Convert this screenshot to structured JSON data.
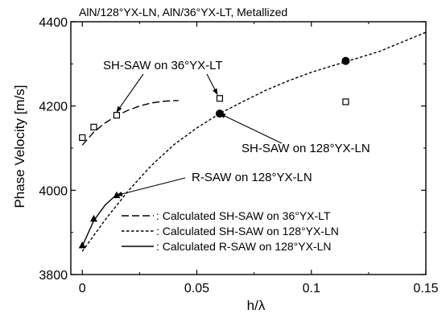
{
  "chart_data": {
    "type": "scatter",
    "title": "AlN/128°YX-LN,  AlN/36°YX-LT,  Metallized",
    "xlabel": "h/λ",
    "ylabel": "Phase Velocity  [m/s]",
    "xlim": [
      -0.005,
      0.15
    ],
    "ylim": [
      3800,
      4400
    ],
    "x_ticks": [
      0,
      0.05,
      0.1,
      0.15
    ],
    "x_tick_labels": [
      "0",
      "0.05",
      "0.1",
      "0.15"
    ],
    "y_ticks": [
      3800,
      4000,
      4200,
      4400
    ],
    "y_tick_labels": [
      "3800",
      "4000",
      "4200",
      "4400"
    ],
    "grid": false,
    "legend_position": "bottom-right",
    "series": [
      {
        "name": "SH-SAW on 36°YX-LT",
        "kind": "measured",
        "marker": "open-square",
        "points": [
          [
            0.0,
            4125
          ],
          [
            0.005,
            4150
          ],
          [
            0.015,
            4178
          ],
          [
            0.06,
            4218
          ],
          [
            0.115,
            4210
          ]
        ]
      },
      {
        "name": "SH-SAW on 128°YX-LN",
        "kind": "measured",
        "marker": "filled-circle",
        "points": [
          [
            0.06,
            4182
          ],
          [
            0.115,
            4307
          ]
        ]
      },
      {
        "name": "R-SAW on 128°YX-LN",
        "kind": "measured",
        "marker": "filled-triangle",
        "points": [
          [
            0.0,
            3869
          ],
          [
            0.005,
            3932
          ],
          [
            0.015,
            3988
          ]
        ]
      },
      {
        "name": "Calculated SH-SAW on 36°YX-LT",
        "kind": "calculated",
        "dash": "long-dash",
        "points": [
          [
            0.0,
            4107
          ],
          [
            0.005,
            4138
          ],
          [
            0.01,
            4160
          ],
          [
            0.015,
            4177
          ],
          [
            0.02,
            4190
          ],
          [
            0.025,
            4200
          ],
          [
            0.03,
            4207
          ],
          [
            0.035,
            4211
          ],
          [
            0.04,
            4213
          ],
          [
            0.042,
            4213
          ]
        ]
      },
      {
        "name": "Calculated SH-SAW on 128°YX-LN",
        "kind": "calculated",
        "dash": "short-dash",
        "points": [
          [
            0.0,
            3855
          ],
          [
            0.01,
            3930
          ],
          [
            0.02,
            3998
          ],
          [
            0.03,
            4058
          ],
          [
            0.04,
            4108
          ],
          [
            0.05,
            4148
          ],
          [
            0.06,
            4182
          ],
          [
            0.07,
            4210
          ],
          [
            0.08,
            4237
          ],
          [
            0.09,
            4260
          ],
          [
            0.1,
            4280
          ],
          [
            0.115,
            4305
          ],
          [
            0.13,
            4330
          ],
          [
            0.15,
            4375
          ]
        ]
      },
      {
        "name": "Calculated R-SAW on 128°YX-LN",
        "kind": "calculated",
        "dash": "solid",
        "points": [
          [
            0.0,
            3867
          ],
          [
            0.005,
            3928
          ],
          [
            0.01,
            3965
          ],
          [
            0.015,
            3990
          ]
        ]
      }
    ],
    "annotations": [
      {
        "text": "SH-SAW  on  36°YX-LT",
        "arrow_to": [
          0.015,
          4178
        ]
      },
      {
        "text": "SH-SAW  on  128°YX-LN",
        "arrow_to": [
          0.06,
          4182
        ]
      },
      {
        "text": "R-SAW  on  128°YX-LN",
        "arrow_to": [
          0.015,
          3988
        ]
      }
    ],
    "annotation_extra_arrows": [
      {
        "annotation": 0,
        "arrow_to": [
          0.06,
          4218
        ]
      }
    ],
    "legend": [
      {
        "label": ": Calculated SH-SAW on  36°YX-LT",
        "dash": "long-dash"
      },
      {
        "label": ": Calculated SH-SAW on  128°YX-LN",
        "dash": "short-dash"
      },
      {
        "label": ": Calculated R-SAW on  128°YX-LN",
        "dash": "solid"
      }
    ],
    "colors": {
      "ink": "#000000",
      "background": "#ffffff"
    }
  }
}
